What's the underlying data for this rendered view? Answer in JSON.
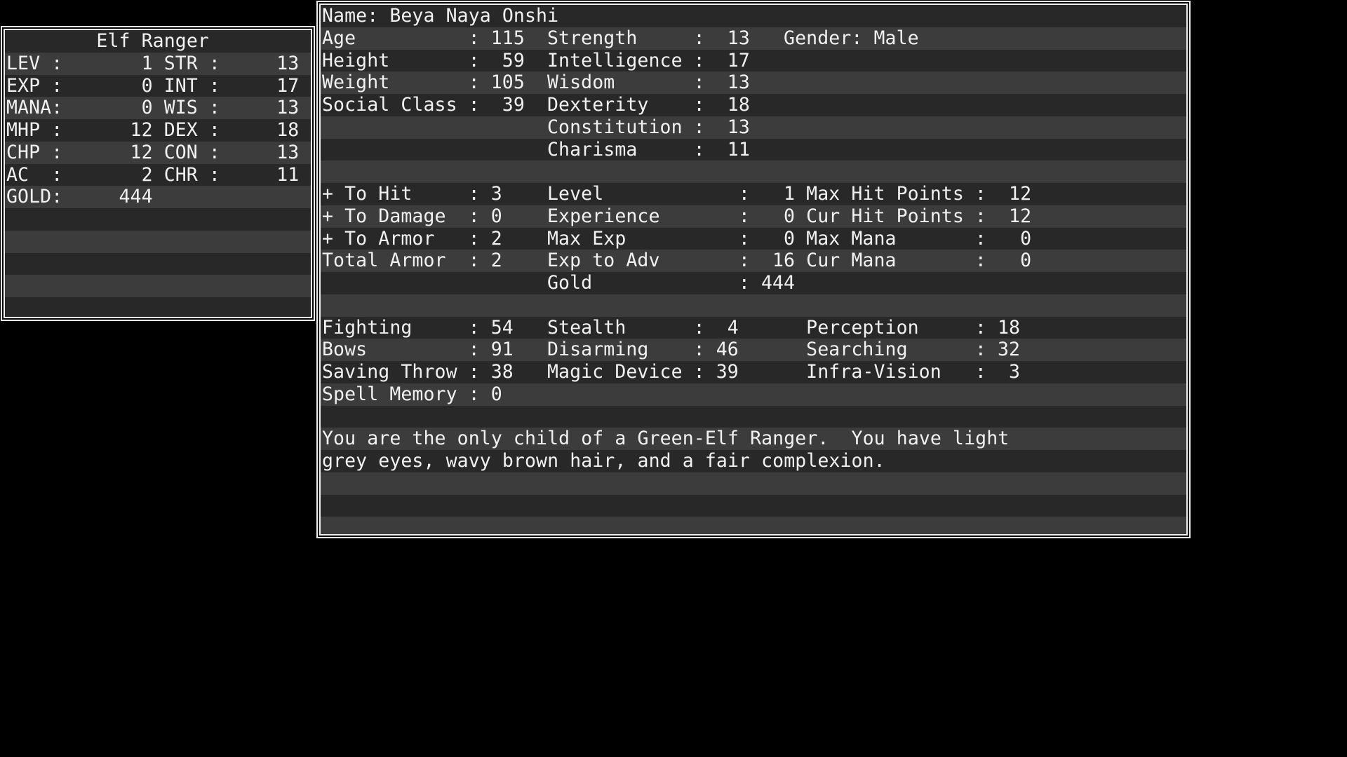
{
  "colors": {
    "background": "#000000",
    "row_dark": "#282828",
    "row_light": "#3c3c3c",
    "text": "#f1f1f1",
    "border": "#ededed"
  },
  "stat_window": {
    "title": "Elf Ranger",
    "rows": [
      {
        "shade": "d",
        "cells": [
          {
            "col": 8,
            "text": "Elf Ranger",
            "n": "class-title"
          }
        ]
      },
      {
        "shade": "l",
        "cells": [
          {
            "col": 0,
            "text": "LEV",
            "n": "stat-label"
          },
          {
            "col": 4,
            "text": ":"
          },
          {
            "col": 12,
            "text": "1",
            "n": "stat-value"
          },
          {
            "col": 14,
            "text": "STR",
            "n": "stat-label"
          },
          {
            "col": 18,
            "text": ":"
          },
          {
            "col": 24,
            "text": "13",
            "n": "stat-value"
          }
        ]
      },
      {
        "shade": "d",
        "cells": [
          {
            "col": 0,
            "text": "EXP",
            "n": "stat-label"
          },
          {
            "col": 4,
            "text": ":"
          },
          {
            "col": 12,
            "text": "0",
            "n": "stat-value"
          },
          {
            "col": 14,
            "text": "INT",
            "n": "stat-label"
          },
          {
            "col": 18,
            "text": ":"
          },
          {
            "col": 24,
            "text": "17",
            "n": "stat-value"
          }
        ]
      },
      {
        "shade": "l",
        "cells": [
          {
            "col": 0,
            "text": "MANA",
            "n": "stat-label"
          },
          {
            "col": 4,
            "text": ":"
          },
          {
            "col": 12,
            "text": "0",
            "n": "stat-value"
          },
          {
            "col": 14,
            "text": "WIS",
            "n": "stat-label"
          },
          {
            "col": 18,
            "text": ":"
          },
          {
            "col": 24,
            "text": "13",
            "n": "stat-value"
          }
        ]
      },
      {
        "shade": "d",
        "cells": [
          {
            "col": 0,
            "text": "MHP",
            "n": "stat-label"
          },
          {
            "col": 4,
            "text": ":"
          },
          {
            "col": 11,
            "text": "12",
            "n": "stat-value"
          },
          {
            "col": 14,
            "text": "DEX",
            "n": "stat-label"
          },
          {
            "col": 18,
            "text": ":"
          },
          {
            "col": 24,
            "text": "18",
            "n": "stat-value"
          }
        ]
      },
      {
        "shade": "l",
        "cells": [
          {
            "col": 0,
            "text": "CHP",
            "n": "stat-label"
          },
          {
            "col": 4,
            "text": ":"
          },
          {
            "col": 11,
            "text": "12",
            "n": "stat-value"
          },
          {
            "col": 14,
            "text": "CON",
            "n": "stat-label"
          },
          {
            "col": 18,
            "text": ":"
          },
          {
            "col": 24,
            "text": "13",
            "n": "stat-value"
          }
        ]
      },
      {
        "shade": "d",
        "cells": [
          {
            "col": 0,
            "text": "AC",
            "n": "stat-label"
          },
          {
            "col": 4,
            "text": ":"
          },
          {
            "col": 12,
            "text": "2",
            "n": "stat-value"
          },
          {
            "col": 14,
            "text": "CHR",
            "n": "stat-label"
          },
          {
            "col": 18,
            "text": ":"
          },
          {
            "col": 24,
            "text": "11",
            "n": "stat-value"
          }
        ]
      },
      {
        "shade": "l",
        "cells": [
          {
            "col": 0,
            "text": "GOLD",
            "n": "stat-label"
          },
          {
            "col": 4,
            "text": ":"
          },
          {
            "col": 10,
            "text": "444",
            "n": "stat-value"
          }
        ]
      },
      {
        "shade": "d",
        "cells": []
      },
      {
        "shade": "l",
        "cells": []
      },
      {
        "shade": "d",
        "cells": []
      },
      {
        "shade": "l",
        "cells": []
      },
      {
        "shade": "d",
        "cells": []
      }
    ]
  },
  "char_window": {
    "rows": [
      {
        "shade": "d",
        "cells": [
          {
            "col": 0,
            "text": "Name: Beya Naya Onshi",
            "n": "character-name"
          }
        ]
      },
      {
        "shade": "l",
        "cells": [
          {
            "col": 0,
            "text": "Age",
            "n": "stat-label"
          },
          {
            "col": 13,
            "text": ":"
          },
          {
            "col": 15,
            "text": "115",
            "n": "stat-value"
          },
          {
            "col": 20,
            "text": "Strength",
            "n": "stat-label"
          },
          {
            "col": 33,
            "text": ":"
          },
          {
            "col": 36,
            "text": "13",
            "n": "stat-value"
          },
          {
            "col": 41,
            "text": "Gender: Male",
            "n": "gender"
          }
        ]
      },
      {
        "shade": "d",
        "cells": [
          {
            "col": 0,
            "text": "Height",
            "n": "stat-label"
          },
          {
            "col": 13,
            "text": ":"
          },
          {
            "col": 16,
            "text": "59",
            "n": "stat-value"
          },
          {
            "col": 20,
            "text": "Intelligence",
            "n": "stat-label"
          },
          {
            "col": 33,
            "text": ":"
          },
          {
            "col": 36,
            "text": "17",
            "n": "stat-value"
          }
        ]
      },
      {
        "shade": "l",
        "cells": [
          {
            "col": 0,
            "text": "Weight",
            "n": "stat-label"
          },
          {
            "col": 13,
            "text": ":"
          },
          {
            "col": 15,
            "text": "105",
            "n": "stat-value"
          },
          {
            "col": 20,
            "text": "Wisdom",
            "n": "stat-label"
          },
          {
            "col": 33,
            "text": ":"
          },
          {
            "col": 36,
            "text": "13",
            "n": "stat-value"
          }
        ]
      },
      {
        "shade": "d",
        "cells": [
          {
            "col": 0,
            "text": "Social Class",
            "n": "stat-label"
          },
          {
            "col": 13,
            "text": ":"
          },
          {
            "col": 16,
            "text": "39",
            "n": "stat-value"
          },
          {
            "col": 20,
            "text": "Dexterity",
            "n": "stat-label"
          },
          {
            "col": 33,
            "text": ":"
          },
          {
            "col": 36,
            "text": "18",
            "n": "stat-value"
          }
        ]
      },
      {
        "shade": "l",
        "cells": [
          {
            "col": 20,
            "text": "Constitution",
            "n": "stat-label"
          },
          {
            "col": 33,
            "text": ":"
          },
          {
            "col": 36,
            "text": "13",
            "n": "stat-value"
          }
        ]
      },
      {
        "shade": "d",
        "cells": [
          {
            "col": 20,
            "text": "Charisma",
            "n": "stat-label"
          },
          {
            "col": 33,
            "text": ":"
          },
          {
            "col": 36,
            "text": "11",
            "n": "stat-value"
          }
        ]
      },
      {
        "shade": "l",
        "cells": []
      },
      {
        "shade": "d",
        "cells": [
          {
            "col": 0,
            "text": "+ To Hit",
            "n": "stat-label"
          },
          {
            "col": 13,
            "text": ":"
          },
          {
            "col": 15,
            "text": "3",
            "n": "stat-value"
          },
          {
            "col": 20,
            "text": "Level",
            "n": "stat-label"
          },
          {
            "col": 37,
            "text": ":"
          },
          {
            "col": 41,
            "text": "1",
            "n": "stat-value"
          },
          {
            "col": 43,
            "text": "Max Hit Points",
            "n": "stat-label"
          },
          {
            "col": 58,
            "text": ":"
          },
          {
            "col": 61,
            "text": "12",
            "n": "stat-value"
          }
        ]
      },
      {
        "shade": "l",
        "cells": [
          {
            "col": 0,
            "text": "+ To Damage",
            "n": "stat-label"
          },
          {
            "col": 13,
            "text": ":"
          },
          {
            "col": 15,
            "text": "0",
            "n": "stat-value"
          },
          {
            "col": 20,
            "text": "Experience",
            "n": "stat-label"
          },
          {
            "col": 37,
            "text": ":"
          },
          {
            "col": 41,
            "text": "0",
            "n": "stat-value"
          },
          {
            "col": 43,
            "text": "Cur Hit Points",
            "n": "stat-label"
          },
          {
            "col": 58,
            "text": ":"
          },
          {
            "col": 61,
            "text": "12",
            "n": "stat-value"
          }
        ]
      },
      {
        "shade": "d",
        "cells": [
          {
            "col": 0,
            "text": "+ To Armor",
            "n": "stat-label"
          },
          {
            "col": 13,
            "text": ":"
          },
          {
            "col": 15,
            "text": "2",
            "n": "stat-value"
          },
          {
            "col": 20,
            "text": "Max Exp",
            "n": "stat-label"
          },
          {
            "col": 37,
            "text": ":"
          },
          {
            "col": 41,
            "text": "0",
            "n": "stat-value"
          },
          {
            "col": 43,
            "text": "Max Mana",
            "n": "stat-label"
          },
          {
            "col": 58,
            "text": ":"
          },
          {
            "col": 62,
            "text": "0",
            "n": "stat-value"
          }
        ]
      },
      {
        "shade": "l",
        "cells": [
          {
            "col": 0,
            "text": "Total Armor",
            "n": "stat-label"
          },
          {
            "col": 13,
            "text": ":"
          },
          {
            "col": 15,
            "text": "2",
            "n": "stat-value"
          },
          {
            "col": 20,
            "text": "Exp to Adv",
            "n": "stat-label"
          },
          {
            "col": 37,
            "text": ":"
          },
          {
            "col": 40,
            "text": "16",
            "n": "stat-value"
          },
          {
            "col": 43,
            "text": "Cur Mana",
            "n": "stat-label"
          },
          {
            "col": 58,
            "text": ":"
          },
          {
            "col": 62,
            "text": "0",
            "n": "stat-value"
          }
        ]
      },
      {
        "shade": "d",
        "cells": [
          {
            "col": 20,
            "text": "Gold",
            "n": "stat-label"
          },
          {
            "col": 37,
            "text": ":"
          },
          {
            "col": 39,
            "text": "444",
            "n": "stat-value"
          }
        ]
      },
      {
        "shade": "l",
        "cells": []
      },
      {
        "shade": "d",
        "cells": [
          {
            "col": 0,
            "text": "Fighting",
            "n": "skill-label"
          },
          {
            "col": 13,
            "text": ":"
          },
          {
            "col": 15,
            "text": "54",
            "n": "skill-value"
          },
          {
            "col": 20,
            "text": "Stealth",
            "n": "skill-label"
          },
          {
            "col": 33,
            "text": ":"
          },
          {
            "col": 36,
            "text": "4",
            "n": "skill-value"
          },
          {
            "col": 43,
            "text": "Perception",
            "n": "skill-label"
          },
          {
            "col": 58,
            "text": ":"
          },
          {
            "col": 60,
            "text": "18",
            "n": "skill-value"
          }
        ]
      },
      {
        "shade": "l",
        "cells": [
          {
            "col": 0,
            "text": "Bows",
            "n": "skill-label"
          },
          {
            "col": 13,
            "text": ":"
          },
          {
            "col": 15,
            "text": "91",
            "n": "skill-value"
          },
          {
            "col": 20,
            "text": "Disarming",
            "n": "skill-label"
          },
          {
            "col": 33,
            "text": ":"
          },
          {
            "col": 35,
            "text": "46",
            "n": "skill-value"
          },
          {
            "col": 43,
            "text": "Searching",
            "n": "skill-label"
          },
          {
            "col": 58,
            "text": ":"
          },
          {
            "col": 60,
            "text": "32",
            "n": "skill-value"
          }
        ]
      },
      {
        "shade": "d",
        "cells": [
          {
            "col": 0,
            "text": "Saving Throw",
            "n": "skill-label"
          },
          {
            "col": 13,
            "text": ":"
          },
          {
            "col": 15,
            "text": "38",
            "n": "skill-value"
          },
          {
            "col": 20,
            "text": "Magic Device",
            "n": "skill-label"
          },
          {
            "col": 33,
            "text": ":"
          },
          {
            "col": 35,
            "text": "39",
            "n": "skill-value"
          },
          {
            "col": 43,
            "text": "Infra-Vision",
            "n": "skill-label"
          },
          {
            "col": 58,
            "text": ":"
          },
          {
            "col": 61,
            "text": "3",
            "n": "skill-value"
          }
        ]
      },
      {
        "shade": "l",
        "cells": [
          {
            "col": 0,
            "text": "Spell Memory",
            "n": "skill-label"
          },
          {
            "col": 13,
            "text": ":"
          },
          {
            "col": 15,
            "text": "0",
            "n": "skill-value"
          }
        ]
      },
      {
        "shade": "d",
        "cells": []
      },
      {
        "shade": "l",
        "cells": [
          {
            "col": 0,
            "text": "You are the only child of a Green-Elf Ranger.  You have light",
            "n": "history-line"
          }
        ]
      },
      {
        "shade": "d",
        "cells": [
          {
            "col": 0,
            "text": "grey eyes, wavy brown hair, and a fair complexion.",
            "n": "history-line"
          }
        ]
      },
      {
        "shade": "l",
        "cells": []
      },
      {
        "shade": "d",
        "cells": []
      },
      {
        "shade": "l",
        "cells": []
      }
    ]
  }
}
